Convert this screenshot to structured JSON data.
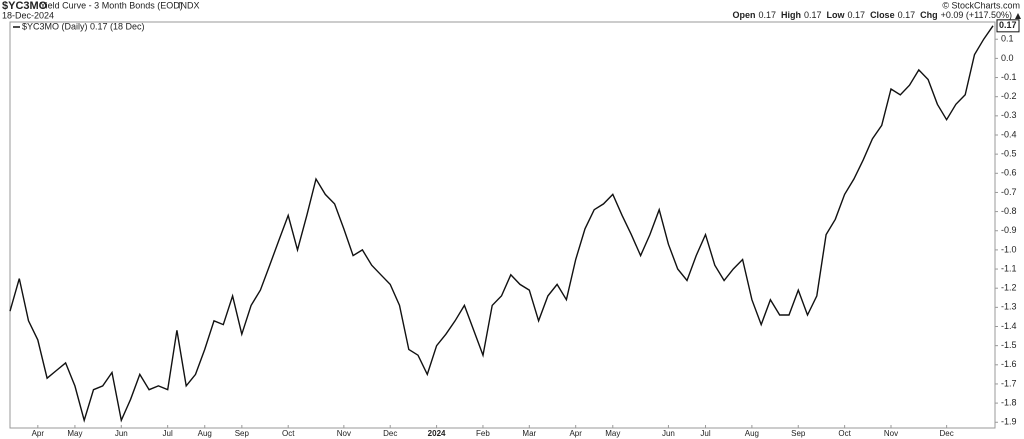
{
  "chart_data": {
    "type": "line",
    "symbol": "$YC3MO",
    "title": "Yield Curve - 3 Month Bonds (EOD)",
    "exchange": "INDX",
    "date": "18-Dec-2024",
    "quote": [
      {
        "label": "Open",
        "value": "0.17"
      },
      {
        "label": "High",
        "value": "0.17"
      },
      {
        "label": "Low",
        "value": "0.17"
      },
      {
        "label": "Close",
        "value": "0.17"
      },
      {
        "label": "Chg",
        "value": "+0.09 (+117.50%)"
      }
    ],
    "credit": "© StockCharts.com",
    "legend": "$YC3MO (Daily) 0.17 (18 Dec)",
    "categories": [
      null,
      null,
      null,
      "Apr",
      null,
      null,
      null,
      "May",
      null,
      null,
      null,
      null,
      "Jun",
      null,
      null,
      null,
      null,
      "Jul",
      null,
      null,
      null,
      "Aug",
      null,
      null,
      null,
      "Sep",
      null,
      null,
      null,
      null,
      "Oct",
      null,
      null,
      null,
      null,
      null,
      "Nov",
      null,
      null,
      null,
      null,
      "Dec",
      null,
      null,
      null,
      null,
      "2024",
      null,
      null,
      null,
      null,
      "Feb",
      null,
      null,
      null,
      null,
      "Mar",
      null,
      null,
      null,
      null,
      "Apr",
      null,
      null,
      null,
      "May",
      null,
      null,
      null,
      null,
      null,
      "Jun",
      null,
      null,
      null,
      "Jul",
      null,
      null,
      null,
      null,
      "Aug",
      null,
      null,
      null,
      null,
      "Sep",
      null,
      null,
      null,
      null,
      "Oct",
      null,
      null,
      null,
      null,
      "Nov",
      null,
      null,
      null,
      null,
      null,
      "Dec",
      null,
      null,
      null,
      null,
      null
    ],
    "series": [
      {
        "name": "$YC3MO",
        "color": "#111111",
        "values": [
          -1.32,
          -1.15,
          -1.37,
          -1.47,
          -1.67,
          -1.63,
          -1.59,
          -1.71,
          -1.89,
          -1.73,
          -1.71,
          -1.64,
          -1.89,
          -1.78,
          -1.65,
          -1.73,
          -1.71,
          -1.73,
          -1.42,
          -1.71,
          -1.65,
          -1.52,
          -1.37,
          -1.39,
          -1.24,
          -1.44,
          -1.29,
          -1.21,
          -1.08,
          -0.95,
          -0.82,
          -1.0,
          -0.82,
          -0.63,
          -0.71,
          -0.76,
          -0.89,
          -1.03,
          -1.0,
          -1.08,
          -1.13,
          -1.18,
          -1.29,
          -1.52,
          -1.55,
          -1.65,
          -1.5,
          -1.44,
          -1.37,
          -1.29,
          -1.42,
          -1.55,
          -1.29,
          -1.24,
          -1.13,
          -1.18,
          -1.21,
          -1.37,
          -1.24,
          -1.18,
          -1.26,
          -1.05,
          -0.89,
          -0.79,
          -0.76,
          -0.71,
          -0.82,
          -0.92,
          -1.03,
          -0.92,
          -0.79,
          -0.97,
          -1.1,
          -1.16,
          -1.03,
          -0.92,
          -1.08,
          -1.16,
          -1.1,
          -1.05,
          -1.26,
          -1.39,
          -1.26,
          -1.34,
          -1.34,
          -1.21,
          -1.34,
          -1.24,
          -0.92,
          -0.84,
          -0.71,
          -0.63,
          -0.53,
          -0.42,
          -0.35,
          -0.16,
          -0.19,
          -0.14,
          -0.06,
          -0.11,
          -0.24,
          -0.32,
          -0.24,
          -0.19,
          0.02,
          0.1,
          0.17
        ]
      }
    ],
    "ylim": [
      -1.93,
      0.19
    ],
    "yticks": [
      0.1,
      {
        "value": 0,
        "label": "0.0"
      },
      -0.1,
      -0.2,
      -0.3,
      -0.4,
      -0.5,
      -0.6,
      -0.7,
      -0.8,
      -0.9,
      {
        "value": -1,
        "label": "-1.0"
      },
      -1.1,
      -1.2,
      -1.3,
      -1.4,
      -1.5,
      -1.6,
      -1.7,
      -1.8,
      -1.9
    ]
  }
}
